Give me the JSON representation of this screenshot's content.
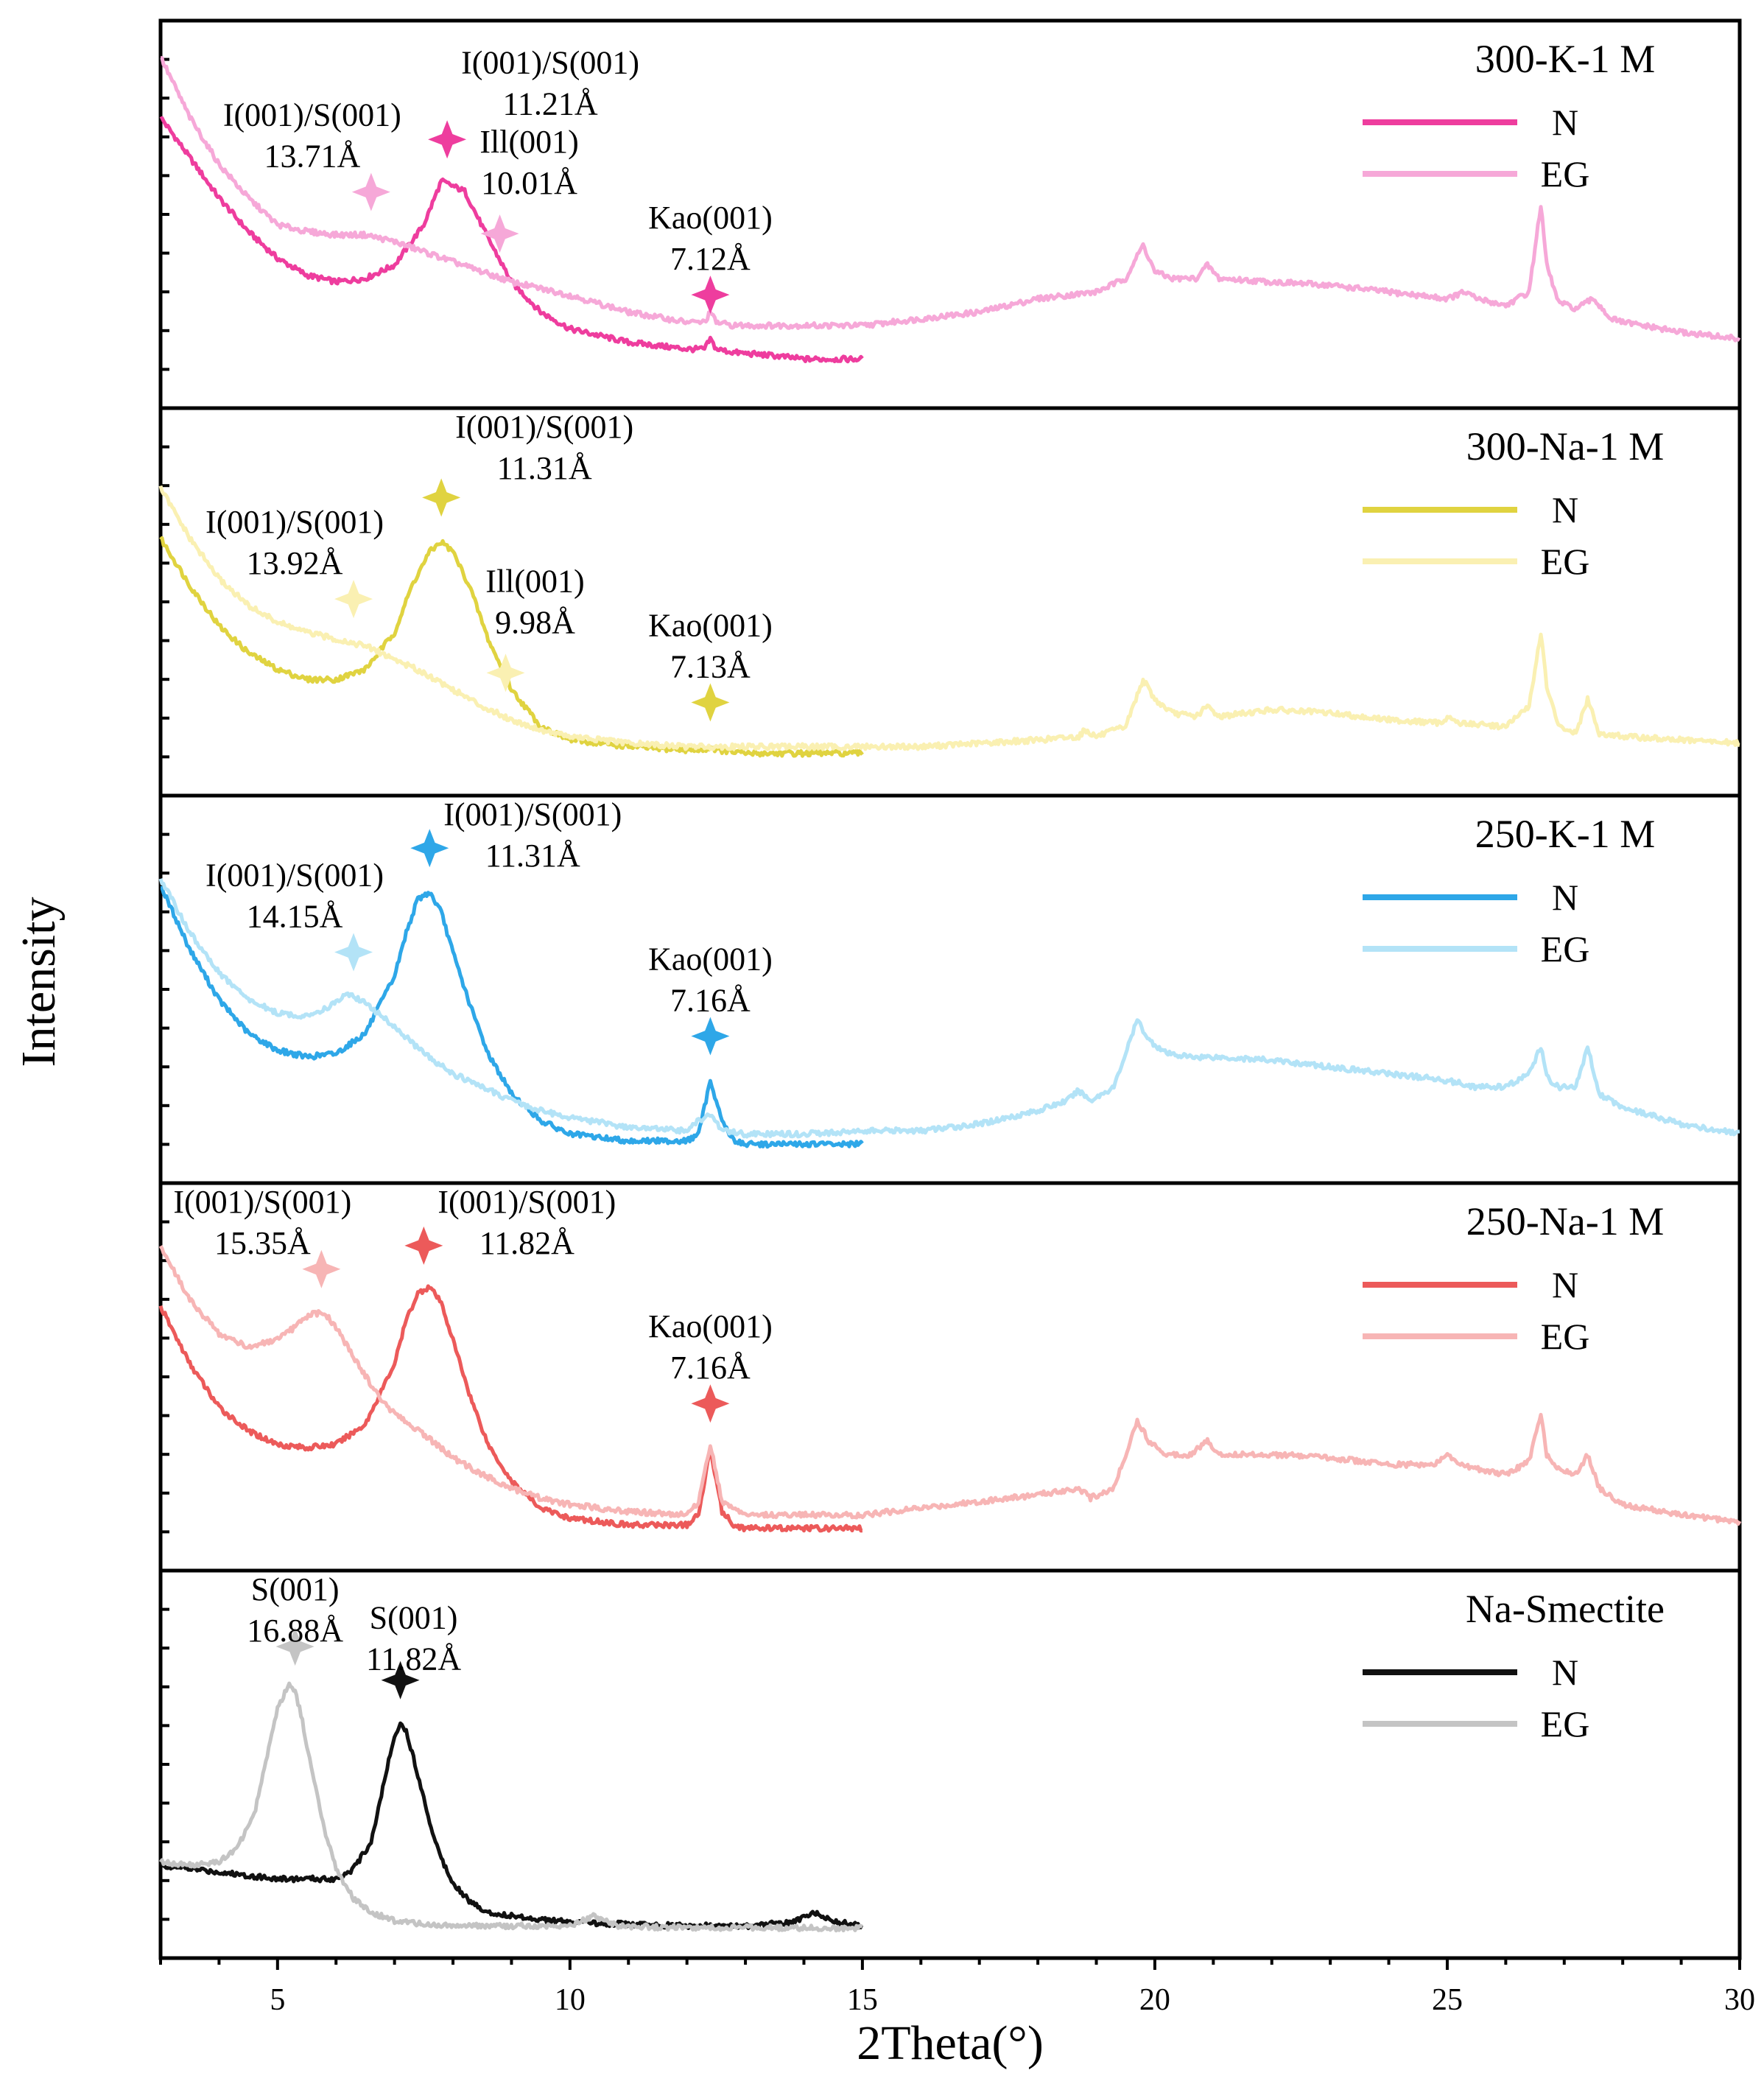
{
  "chart_data": {
    "type": "line",
    "xlabel": "2Theta(°)",
    "ylabel": "Intensity",
    "xlim": [
      3,
      30
    ],
    "x_ticks": [
      5,
      10,
      15,
      20,
      25,
      30
    ],
    "ylim": [
      0,
      100
    ],
    "panels": [
      {
        "title": "300-K-1 M",
        "series": [
          {
            "name": "N",
            "color": "#ee3d9e",
            "x": [
              3,
              3.5,
              4,
              4.5,
              5,
              5.5,
              6,
              6.5,
              7,
              7.5,
              7.8,
              8.2,
              8.6,
              9,
              9.5,
              10,
              11,
              12,
              12.3,
              12.4,
              12.5,
              12.8,
              13.5,
              14,
              15
            ],
            "y": [
              80,
              68,
              56,
              46,
              38,
              33,
              31,
              32,
              36,
              48,
              61,
              58,
              44,
              31,
              22,
              17,
              13,
              11,
              11,
              14,
              11,
              10,
              9,
              8,
              8
            ]
          },
          {
            "name": "EG",
            "color": "#f6a8d8",
            "x": [
              3,
              3.5,
              4,
              4.5,
              5,
              5.5,
              6,
              6.5,
              7,
              7.5,
              8,
              8.5,
              9,
              10,
              11,
              12,
              12.3,
              12.4,
              12.5,
              12.8,
              14,
              15,
              16,
              17,
              18,
              19,
              19.5,
              19.8,
              20,
              20.3,
              20.7,
              20.9,
              21.1,
              22,
              23,
              24,
              25,
              25.3,
              25.5,
              26,
              26.4,
              26.6,
              26.7,
              26.9,
              27.2,
              27.5,
              27.8,
              28,
              29,
              30
            ],
            "y": [
              98,
              80,
              66,
              56,
              48,
              46,
              45,
              45,
              43,
              40,
              37,
              34,
              31,
              27,
              22,
              19,
              19,
              22,
              19,
              18,
              18,
              18,
              20,
              22,
              26,
              28,
              32,
              42,
              34,
              32,
              32,
              36,
              32,
              31,
              30,
              28,
              26,
              28,
              26,
              24,
              28,
              54,
              36,
              25,
              23,
              26,
              20,
              19,
              16,
              14
            ]
          }
        ],
        "annotations": [
          {
            "text": "I(001)/S(001)",
            "sub": "11.21Å",
            "x": 7.9,
            "series": "N"
          },
          {
            "text": "I(001)/S(001)",
            "sub": "13.71Å",
            "x": 6.6,
            "series": "EG"
          },
          {
            "text": "Ill(001)",
            "sub": "10.01Å",
            "x": 8.8,
            "series": "EG"
          },
          {
            "text": "Kao(001)",
            "sub": "7.12Å",
            "x": 12.4,
            "series": "N"
          }
        ]
      },
      {
        "title": "300-Na-1 M",
        "series": [
          {
            "name": "N",
            "color": "#e0d340",
            "x": [
              3,
              3.5,
              4,
              4.5,
              5,
              5.5,
              6,
              6.5,
              7,
              7.3,
              7.6,
              7.8,
              8,
              8.3,
              8.6,
              9,
              9.5,
              10,
              11,
              12,
              12.3,
              12.4,
              12.5,
              13,
              14,
              15
            ],
            "y": [
              70,
              56,
              44,
              36,
              31,
              28,
              28,
              31,
              42,
              56,
              66,
              69,
              66,
              55,
              40,
              25,
              14,
              10,
              8,
              7,
              7,
              8,
              7,
              6,
              6,
              6
            ]
          },
          {
            "name": "EG",
            "color": "#faf0b2",
            "x": [
              3,
              3.5,
              4,
              4.5,
              5,
              5.5,
              6,
              6.5,
              7,
              7.5,
              8,
              8.5,
              9,
              9.5,
              10,
              11,
              12,
              13,
              14,
              15,
              16,
              17,
              18,
              18.7,
              18.8,
              19,
              19.5,
              19.8,
              20,
              20.3,
              20.7,
              20.9,
              21.1,
              22,
              23,
              24,
              24.9,
              25,
              25.2,
              26,
              26.4,
              26.6,
              26.7,
              26.9,
              27.2,
              27.4,
              27.6,
              28,
              29,
              30
            ],
            "y": [
              85,
              70,
              58,
              50,
              45,
              42,
              40,
              38,
              34,
              30,
              25,
              20,
              16,
              13,
              11,
              9,
              8,
              8,
              8,
              8,
              8,
              9,
              10,
              11,
              13,
              11,
              14,
              28,
              22,
              18,
              17,
              20,
              17,
              19,
              18,
              16,
              15,
              17,
              15,
              14,
              20,
              42,
              26,
              14,
              12,
              22,
              12,
              11,
              10,
              9
            ]
          }
        ],
        "annotations": [
          {
            "text": "I(001)/S(001)",
            "sub": "11.31Å",
            "x": 7.8,
            "series": "N"
          },
          {
            "text": "I(001)/S(001)",
            "sub": "13.92Å",
            "x": 6.3,
            "series": "EG"
          },
          {
            "text": "Ill(001)",
            "sub": "9.98Å",
            "x": 8.9,
            "series": "EG"
          },
          {
            "text": "Kao(001)",
            "sub": "7.13Å",
            "x": 12.4,
            "series": "N"
          }
        ]
      },
      {
        "title": "250-K-1 M",
        "series": [
          {
            "name": "N",
            "color": "#2ea7e8",
            "x": [
              3,
              3.5,
              4,
              4.5,
              5,
              5.5,
              6,
              6.5,
              7,
              7.2,
              7.4,
              7.6,
              7.8,
              8,
              8.3,
              8.6,
              9,
              9.5,
              10,
              11,
              12,
              12.2,
              12.4,
              12.6,
              12.8,
              13,
              14,
              15
            ],
            "y": [
              82,
              63,
              48,
              38,
              33,
              31,
              32,
              38,
              55,
              68,
              78,
              80,
              74,
              62,
              46,
              32,
              20,
              12,
              8,
              6,
              6,
              8,
              24,
              12,
              6,
              5,
              5,
              5
            ]
          },
          {
            "name": "EG",
            "color": "#b3e3f7",
            "x": [
              3,
              3.5,
              4,
              4.5,
              5,
              5.5,
              6,
              6.2,
              6.5,
              7,
              7.5,
              8,
              8.5,
              9,
              9.5,
              10,
              11,
              12,
              12.2,
              12.4,
              12.6,
              13,
              14,
              15,
              16,
              17,
              17.5,
              18,
              18.5,
              18.7,
              18.9,
              19.3,
              19.7,
              19.9,
              20.2,
              20.6,
              21,
              22,
              23,
              24,
              25,
              25.5,
              26,
              26.4,
              26.6,
              26.7,
              26.9,
              27.2,
              27.4,
              27.6,
              28,
              29,
              30
            ],
            "y": [
              84,
              68,
              56,
              48,
              44,
              43,
              47,
              50,
              47,
              40,
              32,
              26,
              22,
              18,
              15,
              13,
              10,
              9,
              12,
              14,
              9,
              8,
              8,
              9,
              9,
              11,
              13,
              15,
              18,
              21,
              18,
              22,
              42,
              36,
              32,
              31,
              31,
              30,
              28,
              26,
              24,
              22,
              22,
              26,
              34,
              25,
              22,
              22,
              34,
              20,
              16,
              11,
              8
            ]
          }
        ],
        "annotations": [
          {
            "text": "I(001)/S(001)",
            "sub": "11.31Å",
            "x": 7.6,
            "series": "N"
          },
          {
            "text": "I(001)/S(001)",
            "sub": "14.15Å",
            "x": 6.3,
            "series": "EG"
          },
          {
            "text": "Kao(001)",
            "sub": "7.16Å",
            "x": 12.4,
            "series": "N"
          }
        ]
      },
      {
        "title": "250-Na-1 M",
        "series": [
          {
            "name": "N",
            "color": "#ec5a5a",
            "x": [
              3,
              3.5,
              4,
              4.5,
              5,
              5.5,
              6,
              6.5,
              7,
              7.2,
              7.4,
              7.6,
              7.8,
              8,
              8.3,
              8.6,
              9,
              9.5,
              10,
              11,
              12,
              12.2,
              12.4,
              12.6,
              12.8,
              13,
              14,
              15
            ],
            "y": [
              72,
              55,
              42,
              35,
              31,
              30,
              31,
              37,
              55,
              68,
              76,
              78,
              73,
              62,
              45,
              31,
              20,
              12,
              9,
              7,
              7,
              10,
              30,
              11,
              7,
              6,
              6,
              6
            ]
          },
          {
            "name": "EG",
            "color": "#f7b5b5",
            "x": [
              3,
              3.5,
              4,
              4.5,
              5,
              5.3,
              5.6,
              5.8,
              6,
              6.3,
              6.7,
              7,
              7.5,
              8,
              8.5,
              9,
              9.5,
              10,
              11,
              12,
              12.2,
              12.4,
              12.6,
              13,
              14,
              15,
              16,
              17,
              18,
              18.7,
              18.9,
              19.3,
              19.7,
              19.9,
              20.2,
              20.6,
              20.9,
              21.1,
              22,
              23,
              24,
              24.8,
              25,
              25.2,
              26,
              26.4,
              26.6,
              26.7,
              26.9,
              27.2,
              27.4,
              27.6,
              28,
              29,
              30
            ],
            "y": [
              90,
              74,
              64,
              60,
              62,
              66,
              70,
              70,
              66,
              57,
              46,
              40,
              34,
              27,
              22,
              18,
              15,
              13,
              11,
              10,
              14,
              31,
              14,
              10,
              10,
              10,
              12,
              14,
              16,
              18,
              15,
              18,
              38,
              32,
              28,
              28,
              32,
              28,
              28,
              27,
              25,
              25,
              28,
              25,
              22,
              26,
              40,
              28,
              24,
              22,
              28,
              18,
              13,
              10,
              8
            ]
          }
        ],
        "annotations": [
          {
            "text": "I(001)/S(001)",
            "sub": "11.82Å",
            "x": 7.5,
            "series": "N"
          },
          {
            "text": "I(001)/S(001)",
            "sub": "15.35Å",
            "x": 5.75,
            "series": "EG"
          },
          {
            "text": "Kao(001)",
            "sub": "7.16Å",
            "x": 12.4,
            "series": "N"
          }
        ]
      },
      {
        "title": "Na-Smectite",
        "series": [
          {
            "name": "N",
            "color": "#111111",
            "x": [
              3,
              3.5,
              4,
              4.5,
              5,
              5.5,
              6,
              6.3,
              6.6,
              6.8,
              7,
              7.1,
              7.2,
              7.4,
              7.6,
              7.8,
              8,
              8.3,
              8.6,
              9,
              9.5,
              10,
              11,
              12,
              13,
              13.8,
              14.2,
              14.6,
              15
            ],
            "y": [
              21,
              20,
              19,
              18,
              17,
              17,
              17,
              20,
              28,
              44,
              60,
              63,
              61,
              48,
              34,
              23,
              16,
              10,
              7,
              6,
              5,
              4,
              3.5,
              3,
              3,
              4,
              7,
              4,
              3
            ]
          },
          {
            "name": "EG",
            "color": "#c4c4c4",
            "x": [
              3,
              3.5,
              4,
              4.3,
              4.6,
              4.8,
              5,
              5.2,
              5.3,
              5.4,
              5.6,
              5.8,
              6,
              6.3,
              6.6,
              7,
              7.5,
              8,
              9,
              10,
              10.4,
              10.8,
              11,
              12,
              13,
              14,
              15
            ],
            "y": [
              22,
              21,
              22,
              26,
              36,
              52,
              68,
              75,
              73,
              66,
              48,
              32,
              20,
              11,
              7,
              4.5,
              3.5,
              3,
              3,
              3,
              6,
              3,
              2.8,
              2.5,
              2.5,
              2.4,
              2.3
            ]
          }
        ],
        "annotations": [
          {
            "text": "S(001)",
            "sub": "16.88Å",
            "x": 5.3,
            "series": "EG"
          },
          {
            "text": "S(001)",
            "sub": "11.82Å",
            "x": 7.1,
            "series": "N"
          }
        ]
      }
    ]
  }
}
